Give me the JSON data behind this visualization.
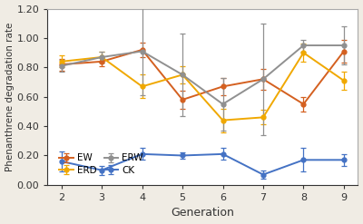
{
  "generations": [
    2,
    3,
    4,
    5,
    6,
    7,
    8,
    9
  ],
  "EW": {
    "values": [
      0.82,
      0.84,
      0.92,
      0.58,
      0.67,
      0.72,
      0.55,
      0.91
    ],
    "errors": [
      0.04,
      0.03,
      0.05,
      0.06,
      0.06,
      0.07,
      0.05,
      0.08
    ],
    "color": "#d46020",
    "marker": "o"
  },
  "ERD": {
    "values": [
      0.84,
      0.87,
      0.67,
      0.75,
      0.44,
      0.46,
      0.9,
      0.71
    ],
    "errors": [
      0.04,
      0.04,
      0.08,
      0.06,
      0.08,
      0.05,
      0.06,
      0.06
    ],
    "color": "#f0a800",
    "marker": "o"
  },
  "ERW": {
    "values": [
      0.81,
      0.87,
      0.91,
      0.75,
      0.55,
      0.72,
      0.95,
      0.95
    ],
    "errors": [
      0.04,
      0.04,
      0.3,
      0.28,
      0.18,
      0.38,
      0.04,
      0.13
    ],
    "color": "#909090",
    "marker": "o"
  },
  "CK": {
    "values": [
      0.16,
      0.1,
      0.21,
      0.2,
      0.21,
      0.07,
      0.17,
      0.17
    ],
    "errors": [
      0.07,
      0.03,
      0.04,
      0.02,
      0.04,
      0.03,
      0.08,
      0.04
    ],
    "color": "#4472c4",
    "marker": "o"
  },
  "xlabel": "Generation",
  "ylabel": "Phenanthrene degradation rate",
  "ylim": [
    0.0,
    1.2
  ],
  "yticks": [
    0.0,
    0.2,
    0.4,
    0.6,
    0.8,
    1.0,
    1.2
  ],
  "legend_order": [
    "EW",
    "ERD",
    "ERW",
    "CK"
  ],
  "fig_bg_color": "#f0ece4",
  "plot_bg_color": "#ffffff"
}
